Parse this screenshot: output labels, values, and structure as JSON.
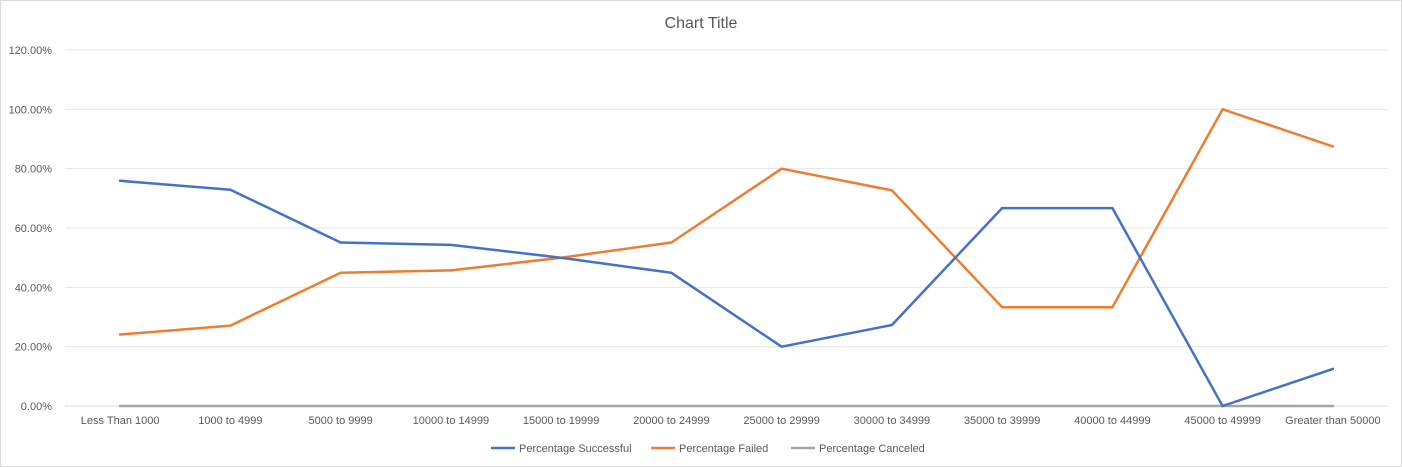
{
  "chart_data": {
    "type": "line",
    "title": "Chart Title",
    "categories": [
      "Less Than 1000",
      "1000 to 4999",
      "5000 to 9999",
      "10000 to 14999",
      "15000 to  19999",
      "20000 to 24999",
      "25000 to 29999",
      "30000 to 34999",
      "35000 to 39999",
      "40000 to 44999",
      "45000 to 49999",
      "Greater than 50000"
    ],
    "ylim": [
      0,
      120
    ],
    "yticks": [
      "0.00%",
      "20.00%",
      "40.00%",
      "60.00%",
      "80.00%",
      "100.00%",
      "120.00%"
    ],
    "grid": true,
    "legend_position": "bottom",
    "series": [
      {
        "name": "Percentage Successful",
        "color": "#4472c4",
        "values": [
          75.9,
          72.9,
          55.1,
          54.3,
          50.0,
          44.9,
          20.0,
          27.3,
          66.7,
          66.7,
          0.0,
          12.5
        ]
      },
      {
        "name": "Percentage Failed",
        "color": "#ed7d31",
        "values": [
          24.1,
          27.1,
          44.9,
          45.7,
          50.0,
          55.1,
          80.0,
          72.7,
          33.3,
          33.3,
          100.0,
          87.5
        ]
      },
      {
        "name": "Percentage Canceled",
        "color": "#a5a5a5",
        "values": [
          0,
          0,
          0,
          0,
          0,
          0,
          0,
          0,
          0,
          0,
          0,
          0
        ]
      }
    ]
  }
}
